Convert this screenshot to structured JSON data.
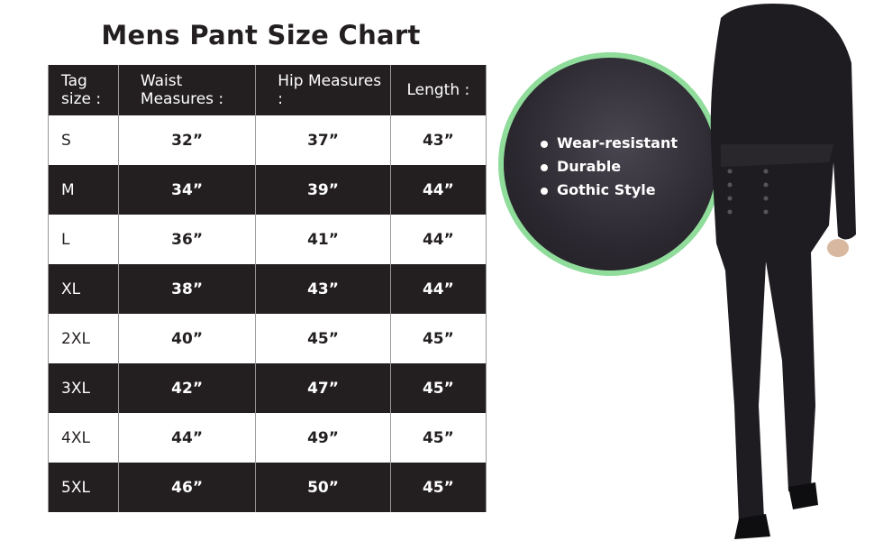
{
  "title": "Mens Pant Size Chart",
  "table": {
    "headers": [
      "Tag size :",
      "Waist Measures :",
      "Hip Measures :",
      "Length :"
    ],
    "rows": [
      [
        "S",
        "32”",
        "37”",
        "43”"
      ],
      [
        "M",
        "34”",
        "39”",
        "44”"
      ],
      [
        "L",
        "36”",
        "41”",
        "44”"
      ],
      [
        "XL",
        "38”",
        "43”",
        "44”"
      ],
      [
        "2XL",
        "40”",
        "45”",
        "45”"
      ],
      [
        "3XL",
        "42”",
        "47”",
        "45”"
      ],
      [
        "4XL",
        "44”",
        "49”",
        "45”"
      ],
      [
        "5XL",
        "46”",
        "50”",
        "45”"
      ]
    ]
  },
  "features": [
    "Wear-resistant",
    "Durable",
    "Gothic Style"
  ],
  "colors": {
    "dark": "#231f20",
    "accent_ring": "#8fdc9b"
  }
}
